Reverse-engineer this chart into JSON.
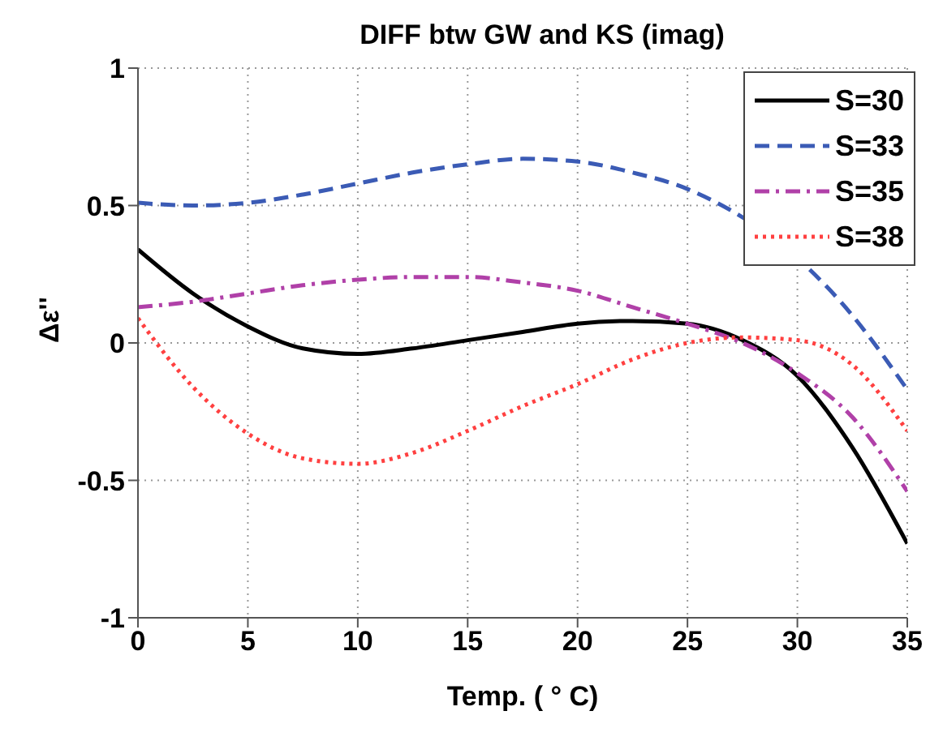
{
  "chart_data": {
    "type": "line",
    "title": "DIFF btw GW and KS (imag)",
    "xlabel": "Temp. ( ° C)",
    "ylabel": "Δε''",
    "x": [
      0,
      2.5,
      5,
      7.5,
      10,
      12.5,
      15,
      17.5,
      20,
      22.5,
      25,
      27.5,
      30,
      32.5,
      35
    ],
    "series": [
      {
        "name": "S=30",
        "color": "#000000",
        "line_style": "solid",
        "values": [
          0.34,
          0.18,
          0.06,
          -0.02,
          -0.04,
          -0.02,
          0.01,
          0.04,
          0.07,
          0.08,
          0.07,
          0.01,
          -0.12,
          -0.38,
          -0.73
        ]
      },
      {
        "name": "S=33",
        "color": "#3b5bb5",
        "line_style": "dashed",
        "values": [
          0.51,
          0.5,
          0.51,
          0.54,
          0.58,
          0.62,
          0.65,
          0.67,
          0.66,
          0.62,
          0.56,
          null,
          null,
          0.1,
          -0.17
        ]
      },
      {
        "name": "S=35",
        "color": "#b040a8",
        "line_style": "dashdot",
        "values": [
          0.13,
          0.15,
          0.18,
          0.21,
          0.23,
          0.24,
          0.24,
          0.22,
          0.19,
          0.13,
          0.07,
          0,
          -0.11,
          -0.27,
          -0.54
        ]
      },
      {
        "name": "S=38",
        "color": "#ff4040",
        "line_style": "dotted",
        "values": [
          0.09,
          -0.16,
          -0.33,
          -0.42,
          -0.44,
          -0.4,
          -0.32,
          -0.23,
          -0.15,
          -0.06,
          0,
          0.02,
          0.01,
          -0.08,
          -0.32
        ]
      }
    ],
    "xlim": [
      0,
      35
    ],
    "xticks": [
      0,
      5,
      10,
      15,
      20,
      25,
      30,
      35
    ],
    "ylim": [
      -1,
      1
    ],
    "yticks": [
      -1,
      -0.5,
      0,
      0.5,
      1
    ],
    "grid": true,
    "legend": "top right"
  }
}
